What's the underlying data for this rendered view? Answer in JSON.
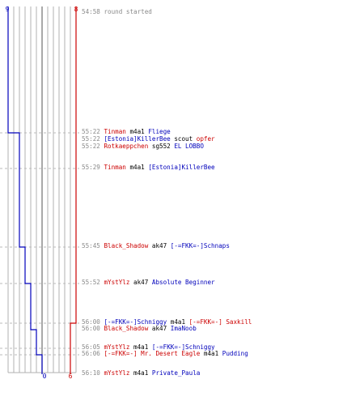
{
  "colors": {
    "red": "#cc0000",
    "blue": "#0000bb",
    "weapon": "#000000",
    "time": "#8a8a8a",
    "grid": "#b0b0b0",
    "grid_center": "#707070"
  },
  "counters": {
    "blue_start": "9",
    "red_start": "8",
    "blue_end": "0",
    "red_end": "6"
  },
  "log": [
    {
      "time": "54:58",
      "message": "round started"
    },
    {
      "time": "55:22",
      "killer": "Tinman",
      "killer_team": "red",
      "weapon": "m4a1",
      "victim": "Fliege",
      "victim_team": "blue"
    },
    {
      "time": "55:22",
      "killer": "[Estonia]KillerBee",
      "killer_team": "blue",
      "weapon": "scout",
      "victim": "opfer",
      "victim_team": "red"
    },
    {
      "time": "55:22",
      "killer": "Rotkaeppchen",
      "killer_team": "red",
      "weapon": "sg552",
      "victim": "EL LOBBO",
      "victim_team": "blue"
    },
    {
      "time": "55:29",
      "killer": "Tinman",
      "killer_team": "red",
      "weapon": "m4a1",
      "victim": "[Estonia]KillerBee",
      "victim_team": "blue"
    },
    {
      "time": "55:45",
      "killer": "Black_Shadow",
      "killer_team": "red",
      "weapon": "ak47",
      "victim": "[-=FKK=-]Schnaps",
      "victim_team": "blue"
    },
    {
      "time": "55:52",
      "killer": "mYstYlz",
      "killer_team": "red",
      "weapon": "ak47",
      "victim": "Absolute Beginner",
      "victim_team": "blue"
    },
    {
      "time": "56:00",
      "killer": "[-=FKK=-]Schniggy",
      "killer_team": "blue",
      "weapon": "m4a1",
      "victim": "[-=FKK=-] Saxkill",
      "victim_team": "red"
    },
    {
      "time": "56:00",
      "killer": "Black_Shadow",
      "killer_team": "red",
      "weapon": "ak47",
      "victim": "ImaNoob",
      "victim_team": "blue"
    },
    {
      "time": "56:05",
      "killer": "mYstYlz",
      "killer_team": "red",
      "weapon": "m4a1",
      "victim": "[-=FKK=-]Schniggy",
      "victim_team": "blue"
    },
    {
      "time": "56:06",
      "killer": "[-=FKK=-] Mr. Desert Eagle",
      "killer_team": "red",
      "weapon": "m4a1",
      "victim": "Pudding",
      "victim_team": "blue"
    },
    {
      "time": "56:10",
      "killer": "mYstYlz",
      "killer_team": "red",
      "weapon": "m4a1",
      "victim": "Private_Paula",
      "victim_team": "blue"
    }
  ]
}
